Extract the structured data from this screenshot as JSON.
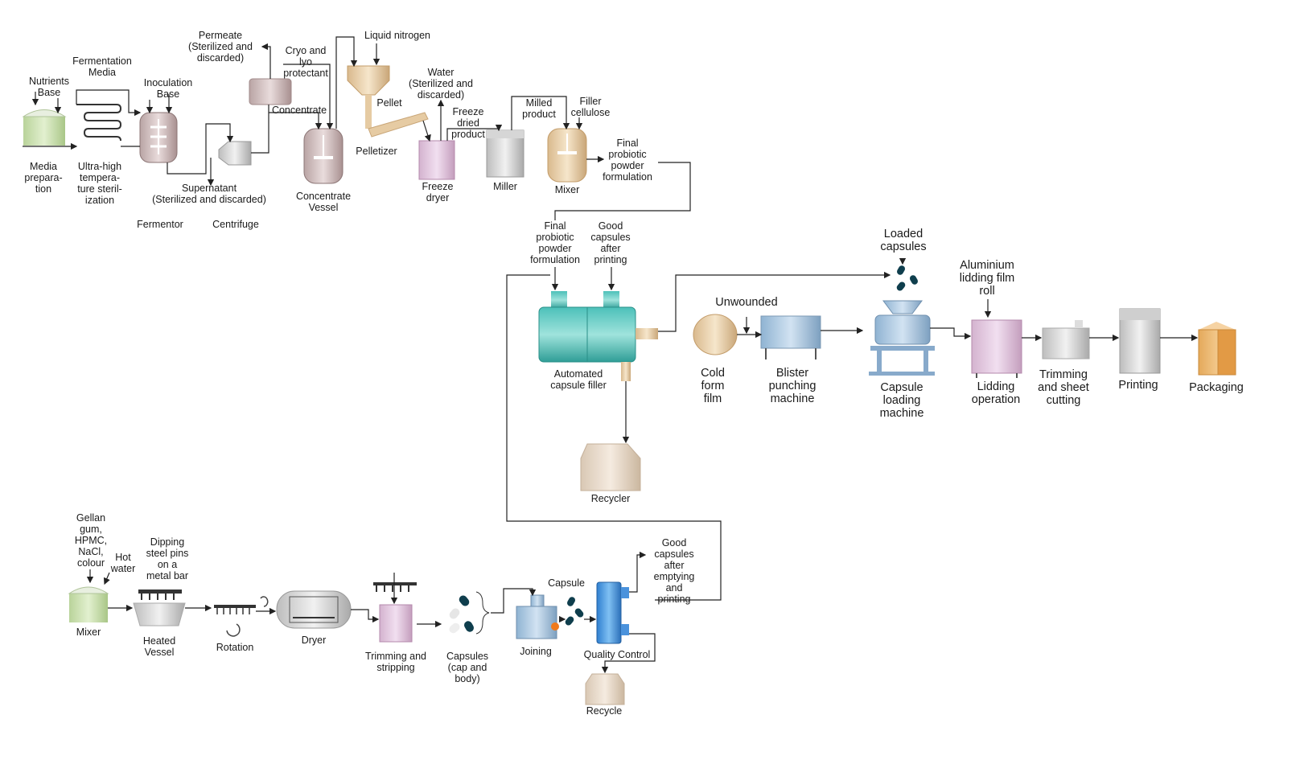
{
  "top_section": {
    "nutrients_base": "Nutrients\nBase",
    "fermentation_media": "Fermentation\nMedia",
    "inoculation_base": "Inoculation\nBase",
    "media_preparation": "Media\nprepara-\ntion",
    "uht_sterilization": "Ultra-high\ntempera-\nture steril-\nization",
    "fermentor": "Fermentor",
    "supernatant": "Supernatant\n(Sterilized and discarded)",
    "centrifuge": "Centrifuge",
    "permeate": "Permeate\n(Sterilized and\ndiscarded)",
    "cryo_lyo": "Cryo and\nlyo\nprotectant",
    "concentrate": "Concentrate",
    "concentrate_vessel": "Concentrate\nVessel",
    "liquid_nitrogen": "Liquid nitrogen",
    "pellet": "Pellet",
    "pelletizer": "Pelletizer",
    "water_sterilized": "Water\n(Sterilized and\ndiscarded)",
    "freeze_dryer": "Freeze\ndryer",
    "freeze_dried_product": "Freeze\ndried\nproduct",
    "milled_product": "Milled\nproduct",
    "miller": "Miller",
    "filler_cellulose": "Filler\ncellulose",
    "mixer": "Mixer",
    "final_probiotic_top": "Final\nprobiotic\npowder\nformulation"
  },
  "middle_section": {
    "final_probiotic_in": "Final\nprobiotic\npowder\nformulation",
    "good_capsules_after_printing": "Good\ncapsules\nafter\nprinting",
    "automated_capsule_filler": "Automated\ncapsule filler",
    "recycler": "Recycler",
    "loaded_capsules": "Loaded\ncapsules",
    "unwounded": "Unwounded",
    "cold_form_film": "Cold\nform\nfilm",
    "blister_punching": "Blister\npunching\nmachine",
    "capsule_loading": "Capsule\nloading\nmachine",
    "aluminium_film": "Aluminium\nlidding film\nroll",
    "lidding_operation": "Lidding\noperation",
    "trimming_sheet": "Trimming\nand sheet\ncutting",
    "printing": "Printing",
    "packaging": "Packaging"
  },
  "bottom_section": {
    "gellan": "Gellan\ngum,\nHPMC,\nNaCl,\ncolour",
    "hot_water": "Hot\nwater",
    "mixer": "Mixer",
    "dipping_pins": "Dipping\nsteel pins\non a\nmetal bar",
    "heated_vessel": "Heated\nVessel",
    "rotation": "Rotation",
    "dryer": "Dryer",
    "trimming_stripping": "Trimming and\nstripping",
    "capsules_cap_body": "Capsules\n(cap and\nbody)",
    "joining": "Joining",
    "capsule": "Capsule",
    "quality_control": "Quality Control",
    "good_capsules_after_emptying": "Good\ncapsules\nafter\nemptying\nand\nprinting",
    "recycle": "Recycle"
  }
}
